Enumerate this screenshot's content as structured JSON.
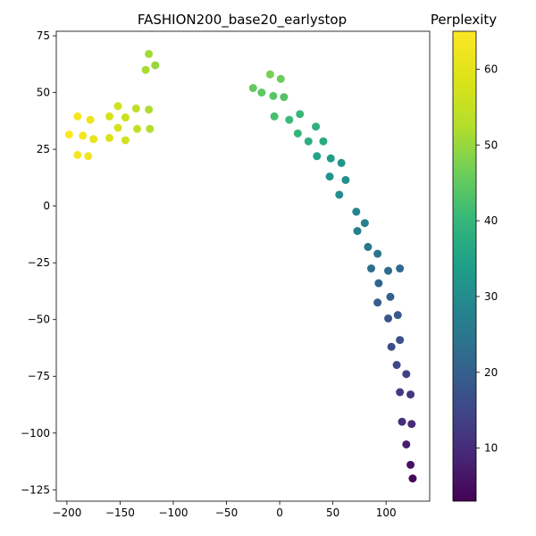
{
  "chart_data": {
    "type": "scatter",
    "title": "FASHION200_base20_earlystop",
    "xlabel": "",
    "ylabel": "",
    "xlim": [
      -210,
      141
    ],
    "ylim": [
      -130,
      77
    ],
    "xticks": [
      -200,
      -150,
      -100,
      -50,
      0,
      50,
      100
    ],
    "yticks": [
      -125,
      -100,
      -75,
      -50,
      -25,
      0,
      25,
      50,
      75
    ],
    "grid": false,
    "colorbar": {
      "label": "Perplexity",
      "colormap": "viridis",
      "range": [
        3,
        65
      ],
      "ticks": [
        10,
        20,
        30,
        40,
        50,
        60
      ]
    },
    "points": [
      {
        "x": -198,
        "y": 31.5,
        "c": 65
      },
      {
        "x": -190,
        "y": 39.5,
        "c": 64
      },
      {
        "x": -185,
        "y": 31,
        "c": 63
      },
      {
        "x": -178,
        "y": 38,
        "c": 62
      },
      {
        "x": -175,
        "y": 29.5,
        "c": 61
      },
      {
        "x": -190,
        "y": 22.5,
        "c": 63.5
      },
      {
        "x": -180,
        "y": 22,
        "c": 62.5
      },
      {
        "x": -160,
        "y": 39.5,
        "c": 58
      },
      {
        "x": -160,
        "y": 30,
        "c": 58.5
      },
      {
        "x": -152,
        "y": 44,
        "c": 57
      },
      {
        "x": -152,
        "y": 34.5,
        "c": 57.5
      },
      {
        "x": -145,
        "y": 39,
        "c": 56
      },
      {
        "x": -145,
        "y": 29,
        "c": 56.5
      },
      {
        "x": -135,
        "y": 43,
        "c": 54
      },
      {
        "x": -134,
        "y": 34,
        "c": 54.5
      },
      {
        "x": -123,
        "y": 42.5,
        "c": 52
      },
      {
        "x": -122,
        "y": 34,
        "c": 52.5
      },
      {
        "x": -123,
        "y": 67,
        "c": 51
      },
      {
        "x": -126,
        "y": 60,
        "c": 51.5
      },
      {
        "x": -117,
        "y": 62,
        "c": 50
      },
      {
        "x": -9,
        "y": 58,
        "c": 47
      },
      {
        "x": 1,
        "y": 56,
        "c": 46
      },
      {
        "x": -25,
        "y": 52,
        "c": 45
      },
      {
        "x": -17,
        "y": 50,
        "c": 44.5
      },
      {
        "x": -6,
        "y": 48.5,
        "c": 44
      },
      {
        "x": 4,
        "y": 48,
        "c": 43.5
      },
      {
        "x": -5,
        "y": 39.5,
        "c": 42
      },
      {
        "x": 9,
        "y": 38,
        "c": 41
      },
      {
        "x": 19,
        "y": 40.5,
        "c": 40.5
      },
      {
        "x": 17,
        "y": 32,
        "c": 39.5
      },
      {
        "x": 34,
        "y": 35,
        "c": 38.5
      },
      {
        "x": 27,
        "y": 28.5,
        "c": 38
      },
      {
        "x": 41,
        "y": 28.5,
        "c": 37
      },
      {
        "x": 35,
        "y": 22,
        "c": 35
      },
      {
        "x": 48,
        "y": 21,
        "c": 33.5
      },
      {
        "x": 58,
        "y": 19,
        "c": 32.5
      },
      {
        "x": 47,
        "y": 13,
        "c": 32
      },
      {
        "x": 62,
        "y": 11.5,
        "c": 31
      },
      {
        "x": 56,
        "y": 5,
        "c": 30
      },
      {
        "x": 72,
        "y": -2.5,
        "c": 28.5
      },
      {
        "x": 80,
        "y": -7.5,
        "c": 27.5
      },
      {
        "x": 73,
        "y": -11,
        "c": 27
      },
      {
        "x": 83,
        "y": -18,
        "c": 25.5
      },
      {
        "x": 92,
        "y": -21,
        "c": 24.5
      },
      {
        "x": 86,
        "y": -27.5,
        "c": 23
      },
      {
        "x": 102,
        "y": -28.5,
        "c": 22.5
      },
      {
        "x": 113,
        "y": -27.5,
        "c": 22
      },
      {
        "x": 93,
        "y": -34,
        "c": 21
      },
      {
        "x": 104,
        "y": -40,
        "c": 20
      },
      {
        "x": 92,
        "y": -42.5,
        "c": 19.5
      },
      {
        "x": 111,
        "y": -48,
        "c": 18.5
      },
      {
        "x": 102,
        "y": -49.5,
        "c": 18
      },
      {
        "x": 113,
        "y": -59,
        "c": 17
      },
      {
        "x": 105,
        "y": -62,
        "c": 16
      },
      {
        "x": 110,
        "y": -70,
        "c": 15
      },
      {
        "x": 119,
        "y": -74,
        "c": 14
      },
      {
        "x": 113,
        "y": -82,
        "c": 12.5
      },
      {
        "x": 123,
        "y": -83,
        "c": 12
      },
      {
        "x": 115,
        "y": -95,
        "c": 10
      },
      {
        "x": 124,
        "y": -96,
        "c": 9.5
      },
      {
        "x": 119,
        "y": -105,
        "c": 7.5
      },
      {
        "x": 123,
        "y": -114,
        "c": 5.5
      },
      {
        "x": 125,
        "y": -120,
        "c": 4
      }
    ]
  }
}
